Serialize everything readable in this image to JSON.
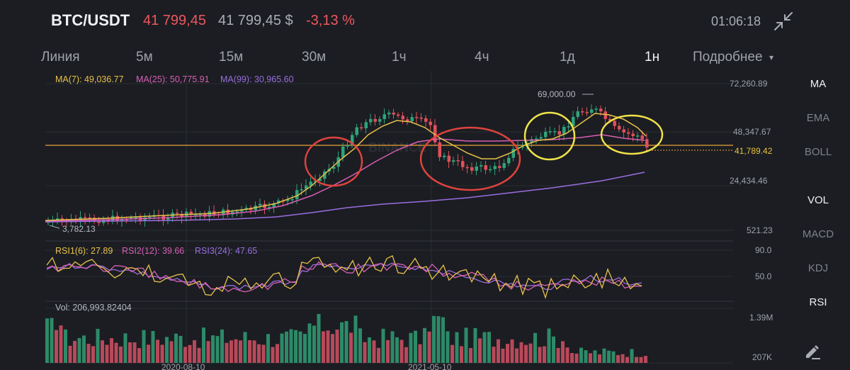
{
  "header": {
    "pair": "BTC/USDT",
    "last_price": "41 799,45",
    "usd_price": "41 799,45 $",
    "change": "-3,13 %",
    "time": "01:06:18",
    "fullscreen_icon": "collapse-arrows-icon"
  },
  "intervals": [
    "Линия",
    "5м",
    "15м",
    "30м",
    "1ч",
    "4ч",
    "1д",
    "1н",
    "Подробнее"
  ],
  "active_interval": "1н",
  "side_indicators": [
    "MA",
    "EMA",
    "BOLL",
    "VOL",
    "MACD",
    "KDJ",
    "RSI"
  ],
  "side_active": [
    "MA",
    "VOL",
    "RSI"
  ],
  "edit_icon": "pencil-icon",
  "ma_legend": {
    "ma7": "MA(7): 49,036.77",
    "ma25": "MA(25): 50,775.91",
    "ma99": "MA(99): 30,965.60"
  },
  "price_axis": {
    "top": "72,260.89",
    "mid": "48,347.67",
    "current": "41,789.42",
    "low": "24,434.46",
    "bottom": "521.23"
  },
  "annotations": {
    "high": "69,000.00",
    "low": "3,782.13",
    "watermark": "BINANCE"
  },
  "rsi_legend": {
    "rsi1": "RSI1(6): 27.89",
    "rsi2": "RSI2(12): 39.66",
    "rsi3": "RSI3(24): 47.65"
  },
  "rsi_axis": {
    "top": "90.0",
    "mid": "50.0"
  },
  "volume": {
    "label": "Vol: 206,993.82404",
    "axis_top": "1.39M",
    "axis_bottom": "207K"
  },
  "date_axis": [
    "2020-08-10",
    "2021-05-10"
  ],
  "colors": {
    "up": "#2ea37a",
    "down": "#e0505b",
    "ma7": "#e8c14a",
    "ma25": "#d95fb5",
    "ma99": "#9a6ee0",
    "current_line": "#e9a23b",
    "circle_red": "#e0433e",
    "circle_yellow": "#f0e24a"
  }
}
